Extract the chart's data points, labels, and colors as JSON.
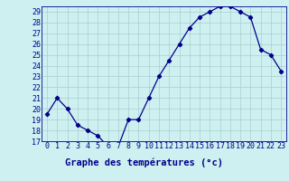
{
  "hours": [
    0,
    1,
    2,
    3,
    4,
    5,
    6,
    7,
    8,
    9,
    10,
    11,
    12,
    13,
    14,
    15,
    16,
    17,
    18,
    19,
    20,
    21,
    22,
    23
  ],
  "temperatures": [
    19.5,
    21.0,
    20.0,
    18.5,
    18.0,
    17.5,
    16.5,
    16.5,
    19.0,
    19.0,
    21.0,
    23.0,
    24.5,
    26.0,
    27.5,
    28.5,
    29.0,
    29.5,
    29.5,
    29.0,
    28.5,
    25.5,
    25.0,
    23.5
  ],
  "line_color": "#00008B",
  "marker": "D",
  "marker_size": 2.2,
  "bg_color": "#cef0f0",
  "grid_color": "#aacece",
  "axis_label_color": "#00008B",
  "tick_color": "#00008B",
  "xlabel": "Graphe des températures (°c)",
  "ylim": [
    17,
    29.5
  ],
  "yticks": [
    17,
    18,
    19,
    20,
    21,
    22,
    23,
    24,
    25,
    26,
    27,
    28,
    29
  ],
  "xlabel_fontsize": 7.5,
  "tick_fontsize": 6.0,
  "spine_color": "#00008B",
  "bottom_bar_color": "#0000cc",
  "bottom_bar_height": 0.07
}
